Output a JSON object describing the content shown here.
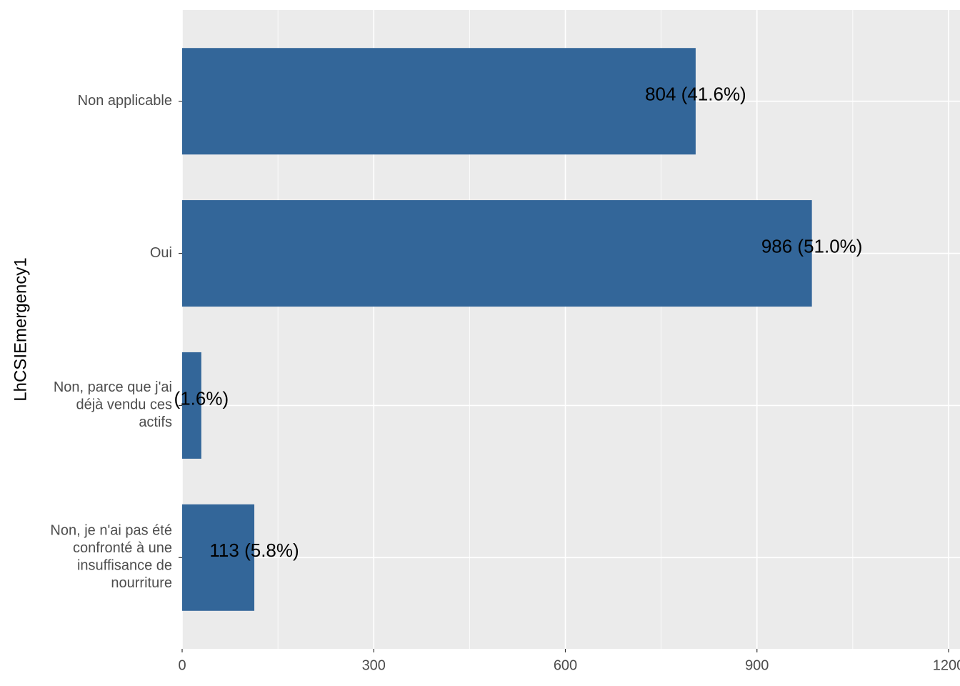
{
  "chart_data": {
    "type": "bar",
    "orientation": "horizontal",
    "y_label": "LhCSIEmergency1",
    "categories": [
      "Non applicable",
      "Oui",
      "Non, parce que j'ai\ndéjà vendu ces\nactifs",
      "Non, je n'ai pas été\nconfronté à une\ninsuffisance de\nnourriture"
    ],
    "values": [
      804,
      986,
      30,
      113
    ],
    "value_labels": [
      "804 (41.6%)",
      "986 (51.0%)",
      "(1.6%)",
      "113 (5.8%)"
    ],
    "color": "#336699",
    "xlim": [
      0,
      1200
    ],
    "xticks": [
      0,
      300,
      600,
      900,
      1200
    ],
    "grid": true
  }
}
